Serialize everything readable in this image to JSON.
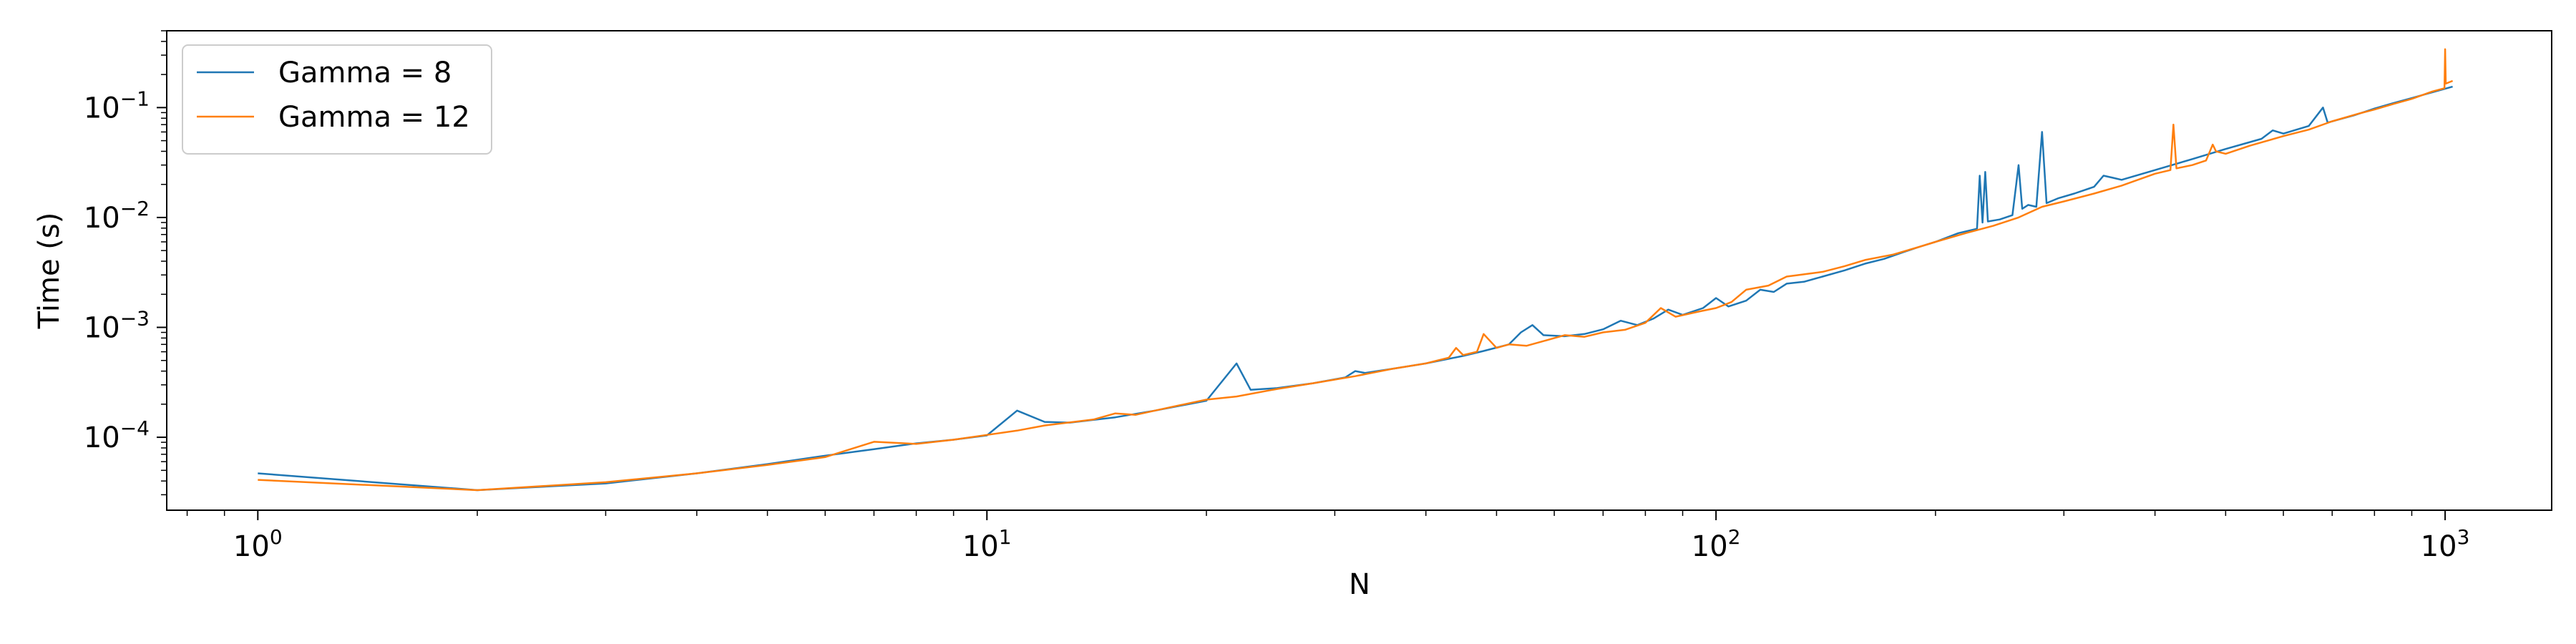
{
  "chart_data": {
    "type": "line",
    "title": "",
    "xlabel": "N",
    "ylabel": "Time (s)",
    "xscale": "log",
    "yscale": "log",
    "xlim": [
      0.75,
      1400
    ],
    "ylim": [
      2.17e-05,
      0.5
    ],
    "grid": false,
    "legend_position": "top-left",
    "x_ticks": [
      {
        "base": "10",
        "exp": "0",
        "value": 1
      },
      {
        "base": "10",
        "exp": "1",
        "value": 10
      },
      {
        "base": "10",
        "exp": "2",
        "value": 100
      },
      {
        "base": "10",
        "exp": "3",
        "value": 1000
      }
    ],
    "y_ticks": [
      {
        "base": "10",
        "exp": "−4",
        "value": 0.0001
      },
      {
        "base": "10",
        "exp": "−3",
        "value": 0.001
      },
      {
        "base": "10",
        "exp": "−2",
        "value": 0.01
      },
      {
        "base": "10",
        "exp": "−1",
        "value": 0.1
      }
    ],
    "series": [
      {
        "name": "Gamma = 8",
        "color": "#1f77b4",
        "points": [
          [
            1,
            4.7e-05
          ],
          [
            2,
            3.3e-05
          ],
          [
            3,
            3.8e-05
          ],
          [
            4,
            4.7e-05
          ],
          [
            5,
            5.7e-05
          ],
          [
            6,
            6.8e-05
          ],
          [
            7,
            7.8e-05
          ],
          [
            8,
            8.8e-05
          ],
          [
            9,
            9.5e-05
          ],
          [
            10,
            0.000104
          ],
          [
            11,
            0.000175
          ],
          [
            12,
            0.000138
          ],
          [
            13,
            0.000136
          ],
          [
            15,
            0.000152
          ],
          [
            17,
            0.000175
          ],
          [
            20,
            0.000215
          ],
          [
            22,
            0.00047
          ],
          [
            23,
            0.00027
          ],
          [
            25,
            0.00028
          ],
          [
            28,
            0.00031
          ],
          [
            31,
            0.00035
          ],
          [
            32,
            0.0004
          ],
          [
            33,
            0.000385
          ],
          [
            36,
            0.00042
          ],
          [
            40,
            0.00047
          ],
          [
            45,
            0.00055
          ],
          [
            48,
            0.00061
          ],
          [
            52,
            0.0007
          ],
          [
            54,
            0.0009
          ],
          [
            56,
            0.00105
          ],
          [
            58,
            0.00085
          ],
          [
            62,
            0.00083
          ],
          [
            66,
            0.00087
          ],
          [
            70,
            0.00096
          ],
          [
            74,
            0.00115
          ],
          [
            78,
            0.00105
          ],
          [
            82,
            0.0012
          ],
          [
            86,
            0.00145
          ],
          [
            90,
            0.0013
          ],
          [
            96,
            0.0015
          ],
          [
            100,
            0.00185
          ],
          [
            104,
            0.00155
          ],
          [
            110,
            0.00175
          ],
          [
            115,
            0.0022
          ],
          [
            120,
            0.0021
          ],
          [
            125,
            0.0025
          ],
          [
            132,
            0.0026
          ],
          [
            140,
            0.0029
          ],
          [
            150,
            0.0033
          ],
          [
            160,
            0.0038
          ],
          [
            170,
            0.0042
          ],
          [
            180,
            0.0048
          ],
          [
            190,
            0.0054
          ],
          [
            200,
            0.006
          ],
          [
            215,
            0.0072
          ],
          [
            228,
            0.0079
          ],
          [
            230,
            0.024
          ],
          [
            232,
            0.009
          ],
          [
            234,
            0.026
          ],
          [
            236,
            0.0092
          ],
          [
            245,
            0.0096
          ],
          [
            255,
            0.0105
          ],
          [
            260,
            0.03
          ],
          [
            263,
            0.012
          ],
          [
            268,
            0.013
          ],
          [
            275,
            0.0125
          ],
          [
            280,
            0.06
          ],
          [
            284,
            0.0135
          ],
          [
            295,
            0.015
          ],
          [
            310,
            0.0165
          ],
          [
            330,
            0.019
          ],
          [
            340,
            0.024
          ],
          [
            350,
            0.023
          ],
          [
            360,
            0.022
          ],
          [
            400,
            0.027
          ],
          [
            450,
            0.034
          ],
          [
            500,
            0.042
          ],
          [
            560,
            0.052
          ],
          [
            580,
            0.062
          ],
          [
            600,
            0.058
          ],
          [
            650,
            0.068
          ],
          [
            680,
            0.1
          ],
          [
            690,
            0.073
          ],
          [
            750,
            0.085
          ],
          [
            800,
            0.098
          ],
          [
            850,
            0.11
          ],
          [
            900,
            0.122
          ],
          [
            950,
            0.135
          ],
          [
            1024,
            0.155
          ]
        ]
      },
      {
        "name": "Gamma = 12",
        "color": "#ff7f0e",
        "points": [
          [
            1,
            4.1e-05
          ],
          [
            2,
            3.3e-05
          ],
          [
            3,
            3.9e-05
          ],
          [
            4,
            4.7e-05
          ],
          [
            5,
            5.6e-05
          ],
          [
            6,
            6.6e-05
          ],
          [
            7,
            9.1e-05
          ],
          [
            8,
            8.7e-05
          ],
          [
            9,
            9.5e-05
          ],
          [
            10,
            0.000105
          ],
          [
            11,
            0.000115
          ],
          [
            12,
            0.000128
          ],
          [
            14,
            0.000145
          ],
          [
            15,
            0.000165
          ],
          [
            16,
            0.00016
          ],
          [
            18,
            0.00019
          ],
          [
            20,
            0.00022
          ],
          [
            22,
            0.000235
          ],
          [
            25,
            0.000275
          ],
          [
            28,
            0.00031
          ],
          [
            32,
            0.00036
          ],
          [
            36,
            0.00042
          ],
          [
            40,
            0.00047
          ],
          [
            43,
            0.00053
          ],
          [
            44,
            0.00065
          ],
          [
            45,
            0.00056
          ],
          [
            47,
            0.0006
          ],
          [
            48,
            0.00087
          ],
          [
            50,
            0.00065
          ],
          [
            52,
            0.0007
          ],
          [
            55,
            0.00068
          ],
          [
            58,
            0.00075
          ],
          [
            62,
            0.00085
          ],
          [
            66,
            0.00082
          ],
          [
            70,
            0.0009
          ],
          [
            75,
            0.00095
          ],
          [
            80,
            0.0011
          ],
          [
            84,
            0.0015
          ],
          [
            88,
            0.00125
          ],
          [
            95,
            0.0014
          ],
          [
            100,
            0.0015
          ],
          [
            105,
            0.0017
          ],
          [
            110,
            0.0022
          ],
          [
            118,
            0.0024
          ],
          [
            125,
            0.0029
          ],
          [
            130,
            0.003
          ],
          [
            140,
            0.0032
          ],
          [
            150,
            0.0036
          ],
          [
            160,
            0.0041
          ],
          [
            175,
            0.0046
          ],
          [
            190,
            0.0054
          ],
          [
            200,
            0.006
          ],
          [
            220,
            0.0072
          ],
          [
            240,
            0.0084
          ],
          [
            260,
            0.01
          ],
          [
            280,
            0.0125
          ],
          [
            300,
            0.014
          ],
          [
            330,
            0.0165
          ],
          [
            360,
            0.0195
          ],
          [
            400,
            0.025
          ],
          [
            420,
            0.027
          ],
          [
            424,
            0.07
          ],
          [
            428,
            0.028
          ],
          [
            450,
            0.03
          ],
          [
            470,
            0.033
          ],
          [
            480,
            0.046
          ],
          [
            485,
            0.04
          ],
          [
            500,
            0.038
          ],
          [
            540,
            0.045
          ],
          [
            600,
            0.055
          ],
          [
            650,
            0.063
          ],
          [
            700,
            0.075
          ],
          [
            760,
            0.088
          ],
          [
            800,
            0.096
          ],
          [
            850,
            0.108
          ],
          [
            900,
            0.12
          ],
          [
            960,
            0.14
          ],
          [
            998,
            0.15
          ],
          [
            1000,
            0.34
          ],
          [
            1002,
            0.165
          ],
          [
            1024,
            0.175
          ]
        ]
      }
    ]
  }
}
